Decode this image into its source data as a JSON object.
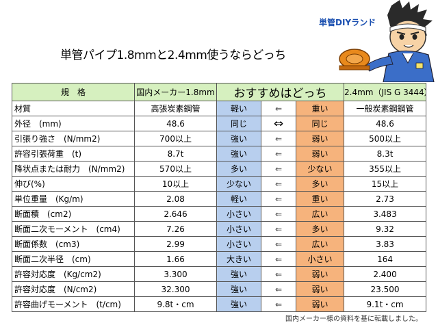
{
  "brand": "単管DIYランド",
  "title": "単管パイプ1.8mmと2.4mm使うならどっち",
  "table": {
    "headers": [
      "規　格",
      "国内メーカー1.8mm",
      "おすすめはどっち",
      "2.4mm（JIS G 3444）"
    ],
    "rows": [
      {
        "item": "材質",
        "left": "高張炭素鋼管",
        "left_judge": "軽い",
        "arrow": "⇐",
        "right_judge": "重い",
        "right": "一般炭素鋼鋼管"
      },
      {
        "item": "外径　(mm)",
        "left": "48.6",
        "left_judge": "同じ",
        "arrow": "⇔",
        "right_judge": "同じ",
        "right": "48.6"
      },
      {
        "item": "引張り強さ　(N/mm2)",
        "left": "700以上",
        "left_judge": "強い",
        "arrow": "⇐",
        "right_judge": "弱い",
        "right": "500以上"
      },
      {
        "item": "許容引張荷重　(t)",
        "left": "8.7t",
        "left_judge": "強い",
        "arrow": "⇐",
        "right_judge": "弱い",
        "right": "8.3t"
      },
      {
        "item": "降状点または耐力　(N/mm2)",
        "left": "570以上",
        "left_judge": "多い",
        "arrow": "⇐",
        "right_judge": "少ない",
        "right": "355以上"
      },
      {
        "item": "伸び(%)",
        "left": "10以上",
        "left_judge": "少ない",
        "arrow": "⇐",
        "right_judge": "多い",
        "right": "15以上"
      },
      {
        "item": "単位重量　(Kg/m)",
        "left": "2.08",
        "left_judge": "軽い",
        "arrow": "⇐",
        "right_judge": "重い",
        "right": "2.73"
      },
      {
        "item": "断面積　(cm2)",
        "left": "2.646",
        "left_judge": "小さい",
        "arrow": "⇐",
        "right_judge": "広い",
        "right": "3.483"
      },
      {
        "item": "断面二次モーメント　(cm4)",
        "left": "7.26",
        "left_judge": "小さい",
        "arrow": "⇐",
        "right_judge": "多い",
        "right": "9.32"
      },
      {
        "item": "断面係数　(cm3)",
        "left": "2.99",
        "left_judge": "小さい",
        "arrow": "⇐",
        "right_judge": "広い",
        "right": "3.83"
      },
      {
        "item": "断面二次半径　(cm)",
        "left": "1.66",
        "left_judge": "大きい",
        "arrow": "⇐",
        "right_judge": "小さい",
        "right": "164"
      },
      {
        "item": "許容対応度　(Kg/cm2)",
        "left": "3.300",
        "left_judge": "強い",
        "arrow": "⇐",
        "right_judge": "弱い",
        "right": "2.400"
      },
      {
        "item": "許容対応度　(N/cm2)",
        "left": "32.300",
        "left_judge": "強い",
        "arrow": "⇐",
        "right_judge": "弱い",
        "right": "23.500"
      },
      {
        "item": "許容曲げモーメント　(t/cm)",
        "left": "9.8t・cm",
        "left_judge": "強い",
        "arrow": "⇐",
        "right_judge": "弱い",
        "right": "9.1t・cm"
      }
    ]
  },
  "footnote": "国内メーカー様の資料を基に転載しました。",
  "colors": {
    "header_bg": "#d6f0bf",
    "left_judge_bg": "#b8cfee",
    "right_judge_bg": "#f6b37c",
    "brand": "#1a4fb0"
  }
}
